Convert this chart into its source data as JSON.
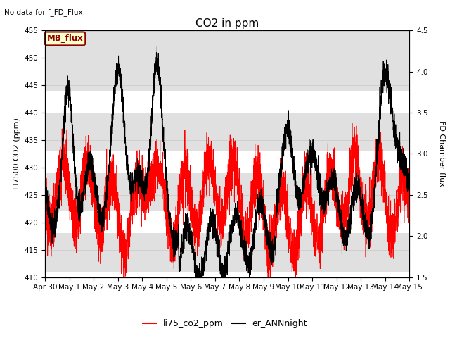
{
  "title": "CO2 in ppm",
  "top_left_text": "No data for f_FD_Flux",
  "ylabel_left": "LI7500 CO2 (ppm)",
  "ylabel_right": "FD Chamber flux",
  "ylim_left": [
    410,
    455
  ],
  "ylim_right": [
    1.5,
    4.5
  ],
  "xlabel_ticks": [
    "Apr 30",
    "May 1",
    "May 2",
    "May 3",
    "May 4",
    "May 5",
    "May 6",
    "May 7",
    "May 8",
    "May 9",
    "May 10",
    "May 11",
    "May 12",
    "May 13",
    "May 14",
    "May 15"
  ],
  "legend_label_red": "li75_co2_ppm",
  "legend_label_black": "er_ANNnight",
  "mb_flux_label": "MB_flux",
  "mb_flux_box_color": "#FFFFCC",
  "mb_flux_border_color": "#8B0000",
  "mb_flux_text_color": "#8B0000",
  "band_color": "#E0E0E0",
  "band_ranges": [
    [
      444,
      455
    ],
    [
      433,
      440
    ],
    [
      422,
      429
    ],
    [
      411,
      418
    ]
  ],
  "line_color_red": "#FF0000",
  "line_color_black": "#000000",
  "title_fontsize": 11,
  "axis_label_fontsize": 8,
  "tick_fontsize": 7.5,
  "n_points": 4320
}
